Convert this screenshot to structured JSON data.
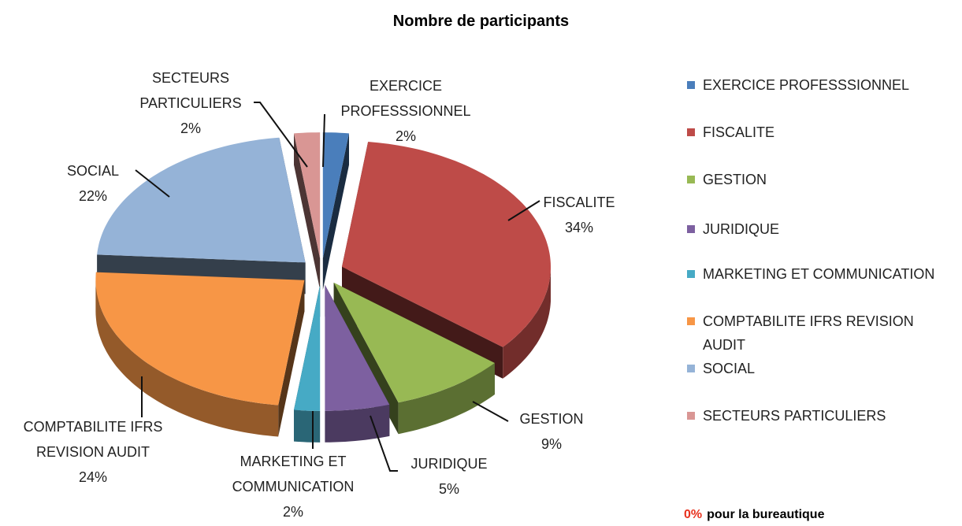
{
  "chart_data": {
    "type": "pie3d",
    "title": "Nombre de participants",
    "categories": [
      "EXERCICE PROFESSSIONNEL",
      "FISCALITE",
      "GESTION",
      "JURIDIQUE",
      "MARKETING ET COMMUNICATION",
      "COMPTABILITE IFRS REVISION AUDIT",
      "SOCIAL",
      "SECTEURS PARTICULIERS"
    ],
    "values": [
      2,
      34,
      9,
      5,
      2,
      24,
      22,
      2
    ],
    "value_labels": [
      "2%",
      "34%",
      "9%",
      "5%",
      "2%",
      "24%",
      "22%",
      "2%"
    ],
    "colors": [
      "#4a7ebb",
      "#be4b48",
      "#98b954",
      "#7d60a0",
      "#46aac5",
      "#f79646",
      "#95b3d7",
      "#d99694"
    ],
    "legend": "right",
    "annotation": {
      "value": "0%",
      "text": "pour la bureautique"
    }
  }
}
